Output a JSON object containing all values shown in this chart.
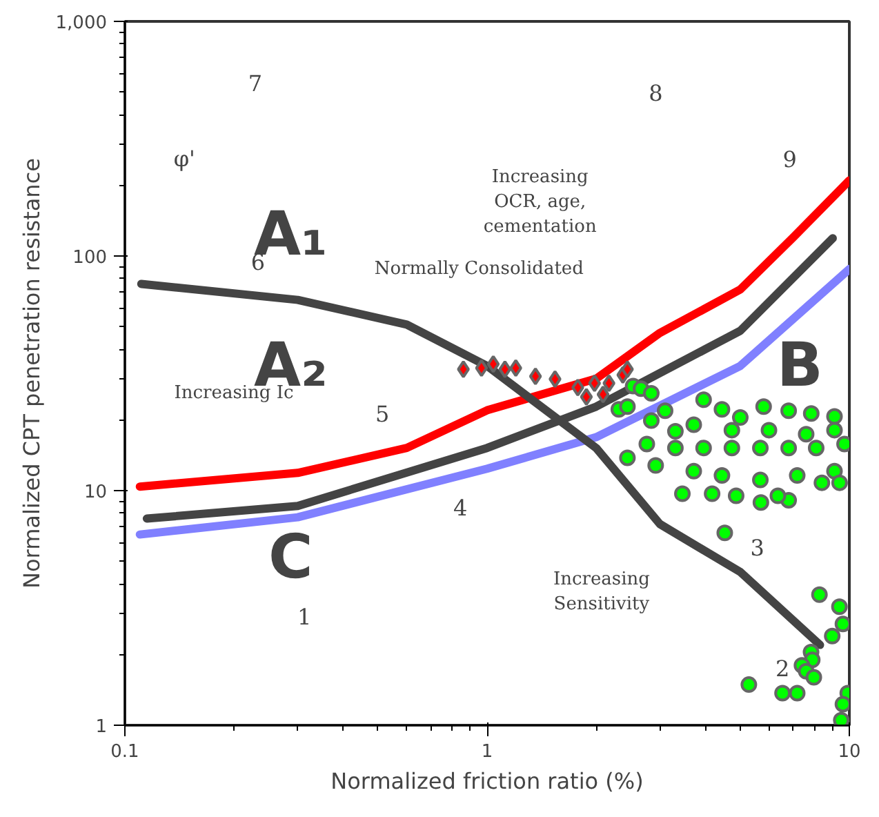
{
  "chart_data": {
    "type": "scatter",
    "xlabel": "Normalized friction ratio (%)",
    "ylabel": "Normalized CPT penetration resistance",
    "log": "xy",
    "grid": false,
    "xlim": [
      0.1,
      10
    ],
    "ylim": [
      1,
      1000
    ],
    "xticks": [
      0.1,
      1,
      10
    ],
    "yticks": [
      1,
      10,
      100,
      {
        "value": 1000,
        "label": "1,000"
      }
    ],
    "series": [
      {
        "type": "line",
        "color": "#ff0000",
        "x": [
          0.11,
          0.3,
          0.6,
          1,
          2,
          3,
          5,
          7,
          10
        ],
        "values": [
          10.4,
          11.9,
          15.2,
          22,
          30,
          47,
          72,
          120,
          210
        ]
      },
      {
        "type": "line",
        "color": "#8080ff",
        "x": [
          0.11,
          0.3,
          1,
          2,
          5,
          10
        ],
        "values": [
          6.5,
          7.7,
          12.4,
          16.9,
          34,
          88
        ]
      },
      {
        "type": "line",
        "color": "#444444",
        "x": [
          0.115,
          0.3,
          1,
          2,
          5,
          9
        ],
        "values": [
          7.6,
          8.6,
          15.2,
          22.8,
          48,
          119
        ]
      },
      {
        "type": "line",
        "color": "#444444",
        "x": [
          0.111,
          0.3,
          0.6,
          1,
          2,
          3,
          5,
          8.3
        ],
        "values": [
          76,
          65,
          51,
          34,
          15.2,
          7.2,
          4.5,
          2.2
        ]
      },
      {
        "marker": "diamond",
        "color": "#ff0000",
        "x": [
          0.86,
          0.965,
          1.04,
          1.12,
          1.2,
          1.36,
          1.54,
          1.78,
          1.88,
          2.09,
          1.98,
          2.17,
          2.37,
          2.44
        ],
        "values": [
          32.9,
          33.3,
          34.6,
          32.9,
          33.3,
          30.7,
          29.9,
          27.5,
          25.1,
          25.7,
          28.7,
          28.7,
          31.1,
          32.9
        ]
      },
      {
        "marker": "circle",
        "color": "#00ff00",
        "x": [
          2.53,
          2.66,
          2.84,
          2.31,
          2.44,
          2.84,
          3.1,
          3.31,
          3.96,
          4.45,
          5.0,
          5.8,
          6.8,
          7.85,
          9.1,
          8.4,
          6.8,
          5.7,
          4.87,
          4.18,
          3.72,
          2.92,
          2.44,
          2.76,
          3.31,
          3.96,
          4.74,
          5.68,
          6.8,
          8.1,
          9.7,
          3.72,
          4.74,
          6.0,
          7.6,
          9.1,
          4.45,
          5.68,
          7.18,
          9.1,
          9.4,
          6.35,
          3.46,
          4.53,
          8.27,
          9.39,
          9.6,
          8.97,
          7.84,
          7.9,
          7.4,
          7.6,
          7.98,
          5.28,
          6.54,
          7.18,
          9.9,
          9.6,
          9.5
        ],
        "values": [
          27.9,
          27.2,
          26,
          22.2,
          22.8,
          19.9,
          21.9,
          17.9,
          24.4,
          22.2,
          20.5,
          22.8,
          21.9,
          21.3,
          20.7,
          10.8,
          9.1,
          8.9,
          9.5,
          9.7,
          12.1,
          12.8,
          13.8,
          15.8,
          15.2,
          15.2,
          15.2,
          15.2,
          15.2,
          15.2,
          15.8,
          19.1,
          18.1,
          18.1,
          17.4,
          18.1,
          11.6,
          11.1,
          11.6,
          12.1,
          10.8,
          9.5,
          9.7,
          6.6,
          3.6,
          3.2,
          2.7,
          2.4,
          2.05,
          1.9,
          1.8,
          1.7,
          1.6,
          1.49,
          1.37,
          1.37,
          1.37,
          1.23,
          1.05
        ]
      }
    ],
    "annotations": [
      "7",
      "8",
      "9",
      "6",
      "5",
      "4",
      "3",
      "2",
      "1",
      "A₁",
      "A₂",
      "B",
      "C",
      "φ'",
      "Increasing\nOCR, age,\ncementation",
      "Normally Consolidated",
      "Increasing Ic",
      "Increasing\nSensitivity"
    ]
  }
}
